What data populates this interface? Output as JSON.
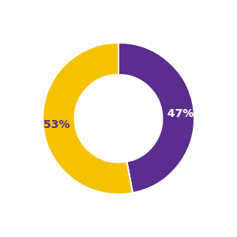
{
  "chart_data": {
    "type": "pie",
    "values": [
      47,
      53
    ],
    "value_labels": [
      "47%",
      "53%"
    ],
    "colors": [
      "#5b2d8e",
      "#f5c200"
    ],
    "data_labels": true
  }
}
